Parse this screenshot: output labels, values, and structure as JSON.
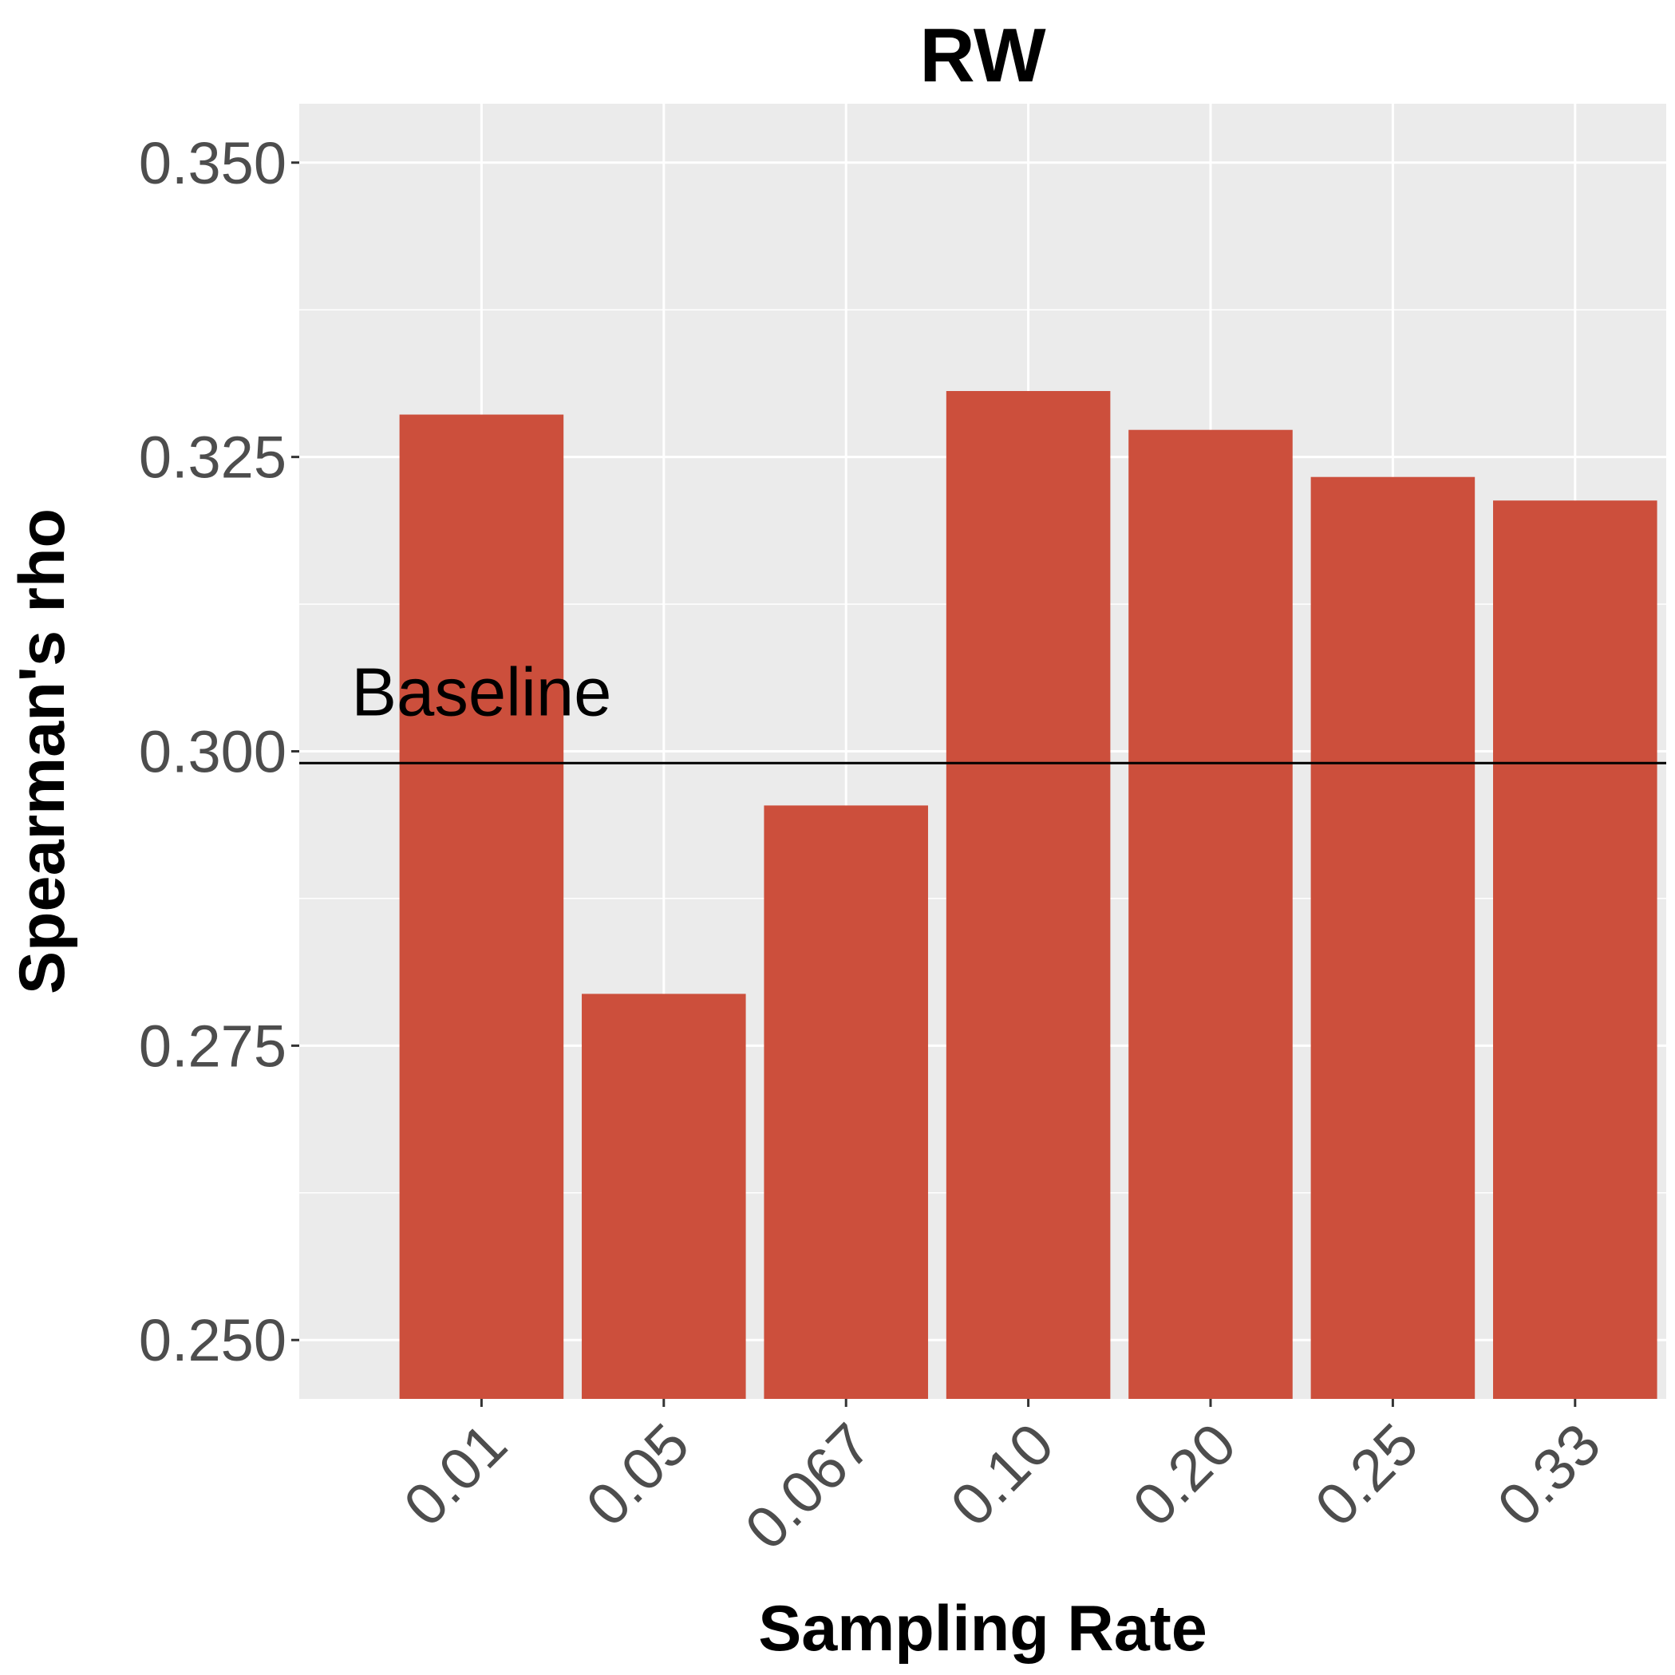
{
  "chart_data": {
    "type": "bar",
    "title": "RW",
    "xlabel": "Sampling Rate",
    "ylabel": "Spearman's rho",
    "categories": [
      "0.01",
      "0.05",
      "0.067",
      "0.10",
      "0.20",
      "0.25",
      "0.33"
    ],
    "values": [
      0.3286,
      0.2794,
      0.2954,
      0.3306,
      0.3273,
      0.3233,
      0.3213
    ],
    "ylim": [
      0.245,
      0.355
    ],
    "yticks": [
      0.25,
      0.275,
      0.3,
      0.325,
      0.35
    ],
    "ytick_labels": [
      "0.250",
      "0.275",
      "0.300",
      "0.325",
      "0.350"
    ],
    "baseline": {
      "value": 0.299,
      "label": "Baseline"
    },
    "grid": true,
    "legend": "none",
    "colors": {
      "bar": "#cc4f3c",
      "panel": "#ebebeb",
      "grid": "#ffffff",
      "baseline": "#000000"
    }
  }
}
